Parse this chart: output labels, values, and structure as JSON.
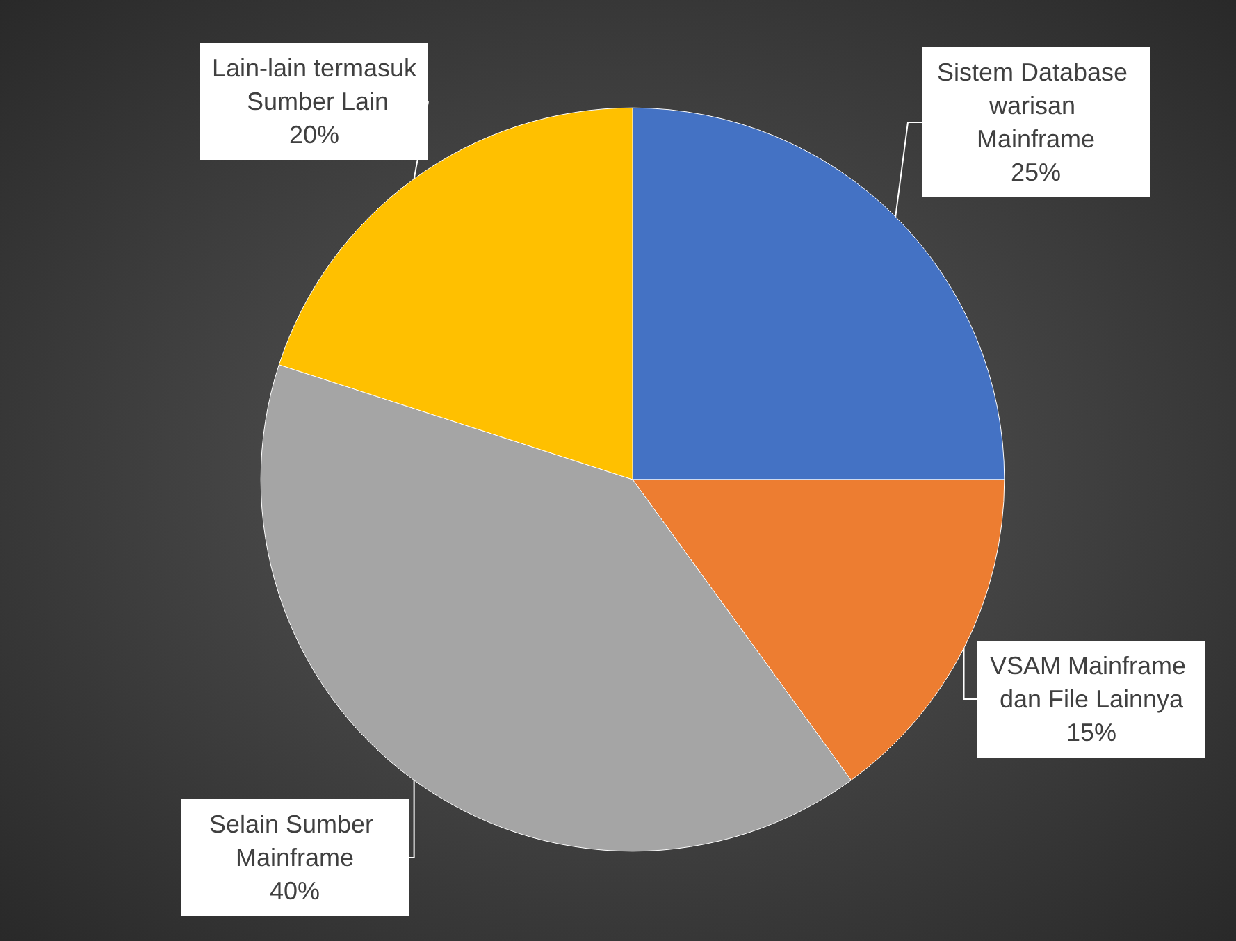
{
  "chart_data": {
    "type": "pie",
    "categories": [
      "Sistem Database warisan Mainframe",
      "VSAM Mainframe dan File Lainnya",
      "Selain Sumber Mainframe",
      "Lain-lain termasuk Sumber Lain"
    ],
    "values": [
      25,
      15,
      40,
      20
    ],
    "value_labels": [
      "25%",
      "15%",
      "40%",
      "20%"
    ],
    "colors": [
      "#4472c4",
      "#ed7d31",
      "#a5a5a5",
      "#ffc000"
    ],
    "legend": false
  }
}
